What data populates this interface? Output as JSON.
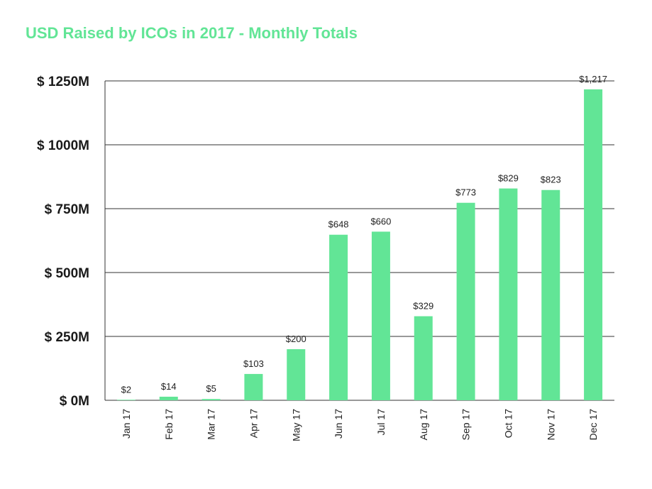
{
  "chart_data": {
    "type": "bar",
    "title": "USD Raised by ICOs in 2017 - Monthly Totals",
    "xlabel": "",
    "ylabel": "",
    "categories": [
      "Jan 17",
      "Feb 17",
      "Mar 17",
      "Apr 17",
      "May 17",
      "Jun 17",
      "Jul 17",
      "Aug 17",
      "Sep 17",
      "Oct 17",
      "Nov 17",
      "Dec 17"
    ],
    "values": [
      2,
      14,
      5,
      103,
      200,
      648,
      660,
      329,
      773,
      829,
      823,
      1217
    ],
    "data_labels": [
      "$2",
      "$14",
      "$5",
      "$103",
      "$200",
      "$648",
      "$660",
      "$329",
      "$773",
      "$829",
      "$823",
      "$1,217"
    ],
    "ylim": [
      0,
      1250
    ],
    "yticks": [
      0,
      250,
      500,
      750,
      1000,
      1250
    ],
    "ytick_labels": [
      "$ 0M",
      "$ 250M",
      "$ 500M",
      "$ 750M",
      "$ 1000M",
      "$ 1250M"
    ],
    "grid": true,
    "legend": "none",
    "colors": {
      "bar": "#62e596",
      "title": "#62e596",
      "grid": "#333333"
    }
  }
}
